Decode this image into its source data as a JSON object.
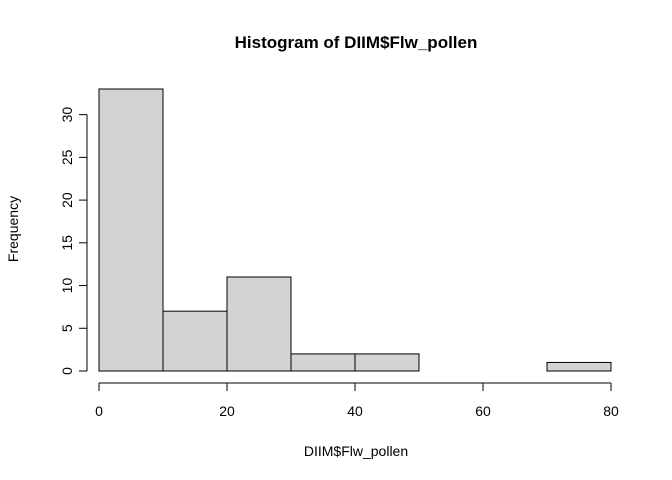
{
  "chart_data": {
    "type": "bar",
    "title": "Histogram of DIIM$Flw_pollen",
    "xlabel": "DIIM$Flw_pollen",
    "ylabel": "Frequency",
    "bins": [
      {
        "start": 0,
        "end": 10,
        "count": 33
      },
      {
        "start": 10,
        "end": 20,
        "count": 7
      },
      {
        "start": 20,
        "end": 30,
        "count": 11
      },
      {
        "start": 30,
        "end": 40,
        "count": 2
      },
      {
        "start": 40,
        "end": 50,
        "count": 2
      },
      {
        "start": 50,
        "end": 60,
        "count": 0
      },
      {
        "start": 60,
        "end": 70,
        "count": 0
      },
      {
        "start": 70,
        "end": 80,
        "count": 1
      }
    ],
    "x_ticks": [
      0,
      20,
      40,
      60,
      80
    ],
    "y_ticks": [
      0,
      5,
      10,
      15,
      20,
      25,
      30
    ],
    "xlim": [
      0,
      80
    ],
    "ylim": [
      0,
      33
    ],
    "grid": false,
    "bar_color": "#d3d3d3",
    "border_color": "#000000"
  }
}
